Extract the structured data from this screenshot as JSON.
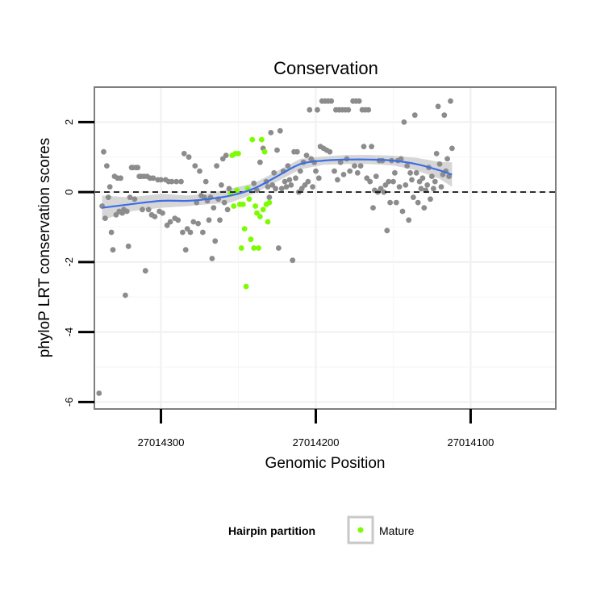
{
  "chart_data": {
    "type": "scatter",
    "title": "Conservation",
    "xlabel": "Genomic Position",
    "ylabel": "phyloP LRT conservation scores",
    "x_reversed": true,
    "xlim": [
      27014045,
      27014343
    ],
    "ylim": [
      -6.2,
      3.0
    ],
    "x_ticks": [
      27014300,
      27014200,
      27014100
    ],
    "x_tick_labels": [
      "27014300",
      "27014200",
      "27014100"
    ],
    "y_ticks": [
      -6,
      -4,
      -2,
      0,
      2
    ],
    "y_tick_labels": [
      "-6",
      "-4",
      "-2",
      "0",
      "2"
    ],
    "grid": true,
    "reference_line": {
      "y": 0,
      "style": "dashed",
      "color": "#000000"
    },
    "legend": {
      "title": "Hairpin partition",
      "position": "bottom",
      "entries": [
        {
          "label": "Mature",
          "color": "#7cfc00"
        }
      ]
    },
    "colors": {
      "other": "#8c8c8c",
      "mature": "#7cfc00",
      "smooth": "#3d6ee6",
      "ribbon": "#c8c8c8",
      "panel_border": "#7f7f7f",
      "grid": "#f0f0f0"
    },
    "series": [
      {
        "name": "",
        "color": "#8c8c8c",
        "points": [
          {
            "x": 27014340,
            "y": -5.75
          },
          {
            "x": 27014338,
            "y": -0.4
          },
          {
            "x": 27014337,
            "y": 1.15
          },
          {
            "x": 27014336,
            "y": -0.75
          },
          {
            "x": 27014335,
            "y": 0.75
          },
          {
            "x": 27014334,
            "y": -0.15
          },
          {
            "x": 27014333,
            "y": 0.15
          },
          {
            "x": 27014332,
            "y": -1.15
          },
          {
            "x": 27014331,
            "y": -1.65
          },
          {
            "x": 27014330,
            "y": 0.45
          },
          {
            "x": 27014329,
            "y": -0.65
          },
          {
            "x": 27014328,
            "y": 0.4
          },
          {
            "x": 27014327,
            "y": -0.55
          },
          {
            "x": 27014326,
            "y": 0.4
          },
          {
            "x": 27014325,
            "y": -0.6
          },
          {
            "x": 27014324,
            "y": -0.5
          },
          {
            "x": 27014323,
            "y": -2.95
          },
          {
            "x": 27014322,
            "y": -0.55
          },
          {
            "x": 27014321,
            "y": -1.55
          },
          {
            "x": 27014320,
            "y": -0.15
          },
          {
            "x": 27014319,
            "y": 0.7
          },
          {
            "x": 27014318,
            "y": 0.7
          },
          {
            "x": 27014317,
            "y": -0.2
          },
          {
            "x": 27014316,
            "y": 0.7
          },
          {
            "x": 27014315,
            "y": 0.7
          },
          {
            "x": 27014314,
            "y": 0.45
          },
          {
            "x": 27014313,
            "y": 0.45
          },
          {
            "x": 27014312,
            "y": -0.5
          },
          {
            "x": 27014311,
            "y": 0.45
          },
          {
            "x": 27014310,
            "y": -2.25
          },
          {
            "x": 27014309,
            "y": 0.45
          },
          {
            "x": 27014308,
            "y": -0.5
          },
          {
            "x": 27014307,
            "y": 0.4
          },
          {
            "x": 27014306,
            "y": -0.65
          },
          {
            "x": 27014305,
            "y": 0.4
          },
          {
            "x": 27014304,
            "y": -0.7
          },
          {
            "x": 27014302,
            "y": 0.35
          },
          {
            "x": 27014301,
            "y": -0.55
          },
          {
            "x": 27014300,
            "y": 0.35
          },
          {
            "x": 27014299,
            "y": -0.6
          },
          {
            "x": 27014297,
            "y": 0.35
          },
          {
            "x": 27014296,
            "y": -0.95
          },
          {
            "x": 27014295,
            "y": 0.3
          },
          {
            "x": 27014294,
            "y": -0.85
          },
          {
            "x": 27014293,
            "y": 0.3
          },
          {
            "x": 27014291,
            "y": -0.75
          },
          {
            "x": 27014290,
            "y": 0.3
          },
          {
            "x": 27014289,
            "y": -0.8
          },
          {
            "x": 27014287,
            "y": 0.3
          },
          {
            "x": 27014286,
            "y": -1.15
          },
          {
            "x": 27014285,
            "y": 1.1
          },
          {
            "x": 27014284,
            "y": -1.65
          },
          {
            "x": 27014283,
            "y": -1.05
          },
          {
            "x": 27014282,
            "y": 1.0
          },
          {
            "x": 27014281,
            "y": -1.15
          },
          {
            "x": 27014279,
            "y": -0.85
          },
          {
            "x": 27014278,
            "y": 0.75
          },
          {
            "x": 27014277,
            "y": -0.3
          },
          {
            "x": 27014276,
            "y": -0.9
          },
          {
            "x": 27014275,
            "y": 0.6
          },
          {
            "x": 27014274,
            "y": -0.1
          },
          {
            "x": 27014273,
            "y": -1.15
          },
          {
            "x": 27014272,
            "y": -0.15
          },
          {
            "x": 27014271,
            "y": 0.3
          },
          {
            "x": 27014270,
            "y": -0.25
          },
          {
            "x": 27014269,
            "y": -0.8
          },
          {
            "x": 27014268,
            "y": -0.15
          },
          {
            "x": 27014267,
            "y": -1.9
          },
          {
            "x": 27014266,
            "y": -0.45
          },
          {
            "x": 27014265,
            "y": -1.4
          },
          {
            "x": 27014264,
            "y": 0.75
          },
          {
            "x": 27014263,
            "y": -0.2
          },
          {
            "x": 27014262,
            "y": -0.8
          },
          {
            "x": 27014261,
            "y": 0.2
          },
          {
            "x": 27014260,
            "y": 0.95
          },
          {
            "x": 27014259,
            "y": -0.3
          },
          {
            "x": 27014258,
            "y": 1.05
          },
          {
            "x": 27014257,
            "y": -0.5
          },
          {
            "x": 27014256,
            "y": 0.1
          },
          {
            "x": 27014240,
            "y": 0.25
          },
          {
            "x": 27014238,
            "y": 0.05
          },
          {
            "x": 27014236,
            "y": 0.85
          },
          {
            "x": 27014234,
            "y": 1.25
          },
          {
            "x": 27014232,
            "y": 0.3
          },
          {
            "x": 27014231,
            "y": 0.15
          },
          {
            "x": 27014230,
            "y": -0.15
          },
          {
            "x": 27014229,
            "y": 1.7
          },
          {
            "x": 27014228,
            "y": 0.2
          },
          {
            "x": 27014227,
            "y": 0.55
          },
          {
            "x": 27014226,
            "y": 0.1
          },
          {
            "x": 27014225,
            "y": 1.2
          },
          {
            "x": 27014224,
            "y": -1.6
          },
          {
            "x": 27014223,
            "y": 1.75
          },
          {
            "x": 27014222,
            "y": 0.1
          },
          {
            "x": 27014221,
            "y": 0.6
          },
          {
            "x": 27014220,
            "y": 0.3
          },
          {
            "x": 27014219,
            "y": 0.15
          },
          {
            "x": 27014218,
            "y": 0.75
          },
          {
            "x": 27014217,
            "y": 0.35
          },
          {
            "x": 27014216,
            "y": 0.2
          },
          {
            "x": 27014215,
            "y": -1.95
          },
          {
            "x": 27014214,
            "y": 1.15
          },
          {
            "x": 27014213,
            "y": 0.4
          },
          {
            "x": 27014212,
            "y": 1.15
          },
          {
            "x": 27014211,
            "y": 0.0
          },
          {
            "x": 27014210,
            "y": 0.6
          },
          {
            "x": 27014209,
            "y": 0.1
          },
          {
            "x": 27014208,
            "y": 0.85
          },
          {
            "x": 27014207,
            "y": 0.2
          },
          {
            "x": 27014206,
            "y": 1.05
          },
          {
            "x": 27014205,
            "y": 0.3
          },
          {
            "x": 27014204,
            "y": 2.35
          },
          {
            "x": 27014203,
            "y": 0.95
          },
          {
            "x": 27014202,
            "y": 0.15
          },
          {
            "x": 27014201,
            "y": 0.85
          },
          {
            "x": 27014200,
            "y": 0.6
          },
          {
            "x": 27014199,
            "y": 2.35
          },
          {
            "x": 27014198,
            "y": 0.4
          },
          {
            "x": 27014197,
            "y": 1.3
          },
          {
            "x": 27014196,
            "y": 2.6
          },
          {
            "x": 27014195,
            "y": 1.25
          },
          {
            "x": 27014194,
            "y": 2.6
          },
          {
            "x": 27014193,
            "y": 1.2
          },
          {
            "x": 27014192,
            "y": 2.6
          },
          {
            "x": 27014191,
            "y": 1.15
          },
          {
            "x": 27014190,
            "y": 2.6
          },
          {
            "x": 27014188,
            "y": 0.6
          },
          {
            "x": 27014187,
            "y": 2.35
          },
          {
            "x": 27014186,
            "y": 0.35
          },
          {
            "x": 27014185,
            "y": 2.35
          },
          {
            "x": 27014184,
            "y": 0.85
          },
          {
            "x": 27014183,
            "y": 2.35
          },
          {
            "x": 27014182,
            "y": 0.5
          },
          {
            "x": 27014181,
            "y": 2.35
          },
          {
            "x": 27014180,
            "y": 0.95
          },
          {
            "x": 27014179,
            "y": 2.35
          },
          {
            "x": 27014178,
            "y": 0.6
          },
          {
            "x": 27014176,
            "y": 2.6
          },
          {
            "x": 27014175,
            "y": 0.75
          },
          {
            "x": 27014174,
            "y": 2.6
          },
          {
            "x": 27014173,
            "y": 0.55
          },
          {
            "x": 27014172,
            "y": 2.6
          },
          {
            "x": 27014171,
            "y": 0.75
          },
          {
            "x": 27014170,
            "y": 2.35
          },
          {
            "x": 27014169,
            "y": 1.3
          },
          {
            "x": 27014168,
            "y": 2.35
          },
          {
            "x": 27014167,
            "y": 0.4
          },
          {
            "x": 27014166,
            "y": 2.35
          },
          {
            "x": 27014165,
            "y": 0.3
          },
          {
            "x": 27014164,
            "y": 1.3
          },
          {
            "x": 27014163,
            "y": -0.45
          },
          {
            "x": 27014162,
            "y": 0.05
          },
          {
            "x": 27014161,
            "y": 0.45
          },
          {
            "x": 27014160,
            "y": 0.0
          },
          {
            "x": 27014159,
            "y": 0.9
          },
          {
            "x": 27014158,
            "y": 0.1
          },
          {
            "x": 27014157,
            "y": 0.9
          },
          {
            "x": 27014156,
            "y": 0.0
          },
          {
            "x": 27014155,
            "y": 0.2
          },
          {
            "x": 27014154,
            "y": -1.1
          },
          {
            "x": 27014153,
            "y": 0.3
          },
          {
            "x": 27014152,
            "y": -0.3
          },
          {
            "x": 27014151,
            "y": 0.9
          },
          {
            "x": 27014150,
            "y": 0.3
          },
          {
            "x": 27014149,
            "y": 0.55
          },
          {
            "x": 27014148,
            "y": -0.3
          },
          {
            "x": 27014147,
            "y": 0.9
          },
          {
            "x": 27014146,
            "y": 0.15
          },
          {
            "x": 27014145,
            "y": 0.95
          },
          {
            "x": 27014144,
            "y": -0.55
          },
          {
            "x": 27014143,
            "y": 2.0
          },
          {
            "x": 27014142,
            "y": 0.2
          },
          {
            "x": 27014141,
            "y": 0.75
          },
          {
            "x": 27014140,
            "y": -0.8
          },
          {
            "x": 27014139,
            "y": 0.55
          },
          {
            "x": 27014138,
            "y": 0.35
          },
          {
            "x": 27014137,
            "y": -0.15
          },
          {
            "x": 27014136,
            "y": 2.2
          },
          {
            "x": 27014135,
            "y": 0.55
          },
          {
            "x": 27014134,
            "y": -0.3
          },
          {
            "x": 27014133,
            "y": 0.3
          },
          {
            "x": 27014132,
            "y": 0.1
          },
          {
            "x": 27014131,
            "y": 0.4
          },
          {
            "x": 27014130,
            "y": -0.45
          },
          {
            "x": 27014129,
            "y": 0.05
          },
          {
            "x": 27014128,
            "y": 0.2
          },
          {
            "x": 27014127,
            "y": 0.7
          },
          {
            "x": 27014126,
            "y": -0.2
          },
          {
            "x": 27014125,
            "y": 0.45
          },
          {
            "x": 27014124,
            "y": 0.1
          },
          {
            "x": 27014123,
            "y": 0.3
          },
          {
            "x": 27014122,
            "y": 1.1
          },
          {
            "x": 27014121,
            "y": 2.45
          },
          {
            "x": 27014120,
            "y": 0.8
          },
          {
            "x": 27014119,
            "y": 0.15
          },
          {
            "x": 27014118,
            "y": 0.5
          },
          {
            "x": 27014117,
            "y": 2.2
          },
          {
            "x": 27014116,
            "y": 0.6
          },
          {
            "x": 27014115,
            "y": 0.95
          },
          {
            "x": 27014114,
            "y": 0.45
          },
          {
            "x": 27014113,
            "y": 2.6
          },
          {
            "x": 27014112,
            "y": 1.25
          }
        ]
      },
      {
        "name": "Mature",
        "color": "#7cfc00",
        "points": [
          {
            "x": 27014255,
            "y": -0.05
          },
          {
            "x": 27014254,
            "y": 1.05
          },
          {
            "x": 27014253,
            "y": -0.4
          },
          {
            "x": 27014252,
            "y": 1.1
          },
          {
            "x": 27014251,
            "y": 0.05
          },
          {
            "x": 27014250,
            "y": 1.1
          },
          {
            "x": 27014249,
            "y": -0.35
          },
          {
            "x": 27014248,
            "y": -1.6
          },
          {
            "x": 27014247,
            "y": -0.35
          },
          {
            "x": 27014246,
            "y": -1.05
          },
          {
            "x": 27014245,
            "y": -2.7
          },
          {
            "x": 27014244,
            "y": 0.1
          },
          {
            "x": 27014243,
            "y": -0.2
          },
          {
            "x": 27014242,
            "y": -1.35
          },
          {
            "x": 27014241,
            "y": 1.5
          },
          {
            "x": 27014240,
            "y": -1.6
          },
          {
            "x": 27014239,
            "y": -0.4
          },
          {
            "x": 27014238,
            "y": -0.6
          },
          {
            "x": 27014237,
            "y": -1.6
          },
          {
            "x": 27014236,
            "y": -0.7
          },
          {
            "x": 27014235,
            "y": 1.5
          },
          {
            "x": 27014234,
            "y": -0.5
          },
          {
            "x": 27014233,
            "y": 1.15
          },
          {
            "x": 27014232,
            "y": -0.35
          },
          {
            "x": 27014231,
            "y": -0.85
          },
          {
            "x": 27014230,
            "y": -0.3
          }
        ]
      }
    ],
    "smooth": {
      "x": [
        27014338,
        27014320,
        27014300,
        27014283,
        27014270,
        27014255,
        27014240,
        27014225,
        27014210,
        27014195,
        27014180,
        27014165,
        27014150,
        27014135,
        27014120,
        27014112
      ],
      "y": [
        -0.45,
        -0.35,
        -0.25,
        -0.25,
        -0.2,
        -0.1,
        0.1,
        0.45,
        0.8,
        0.9,
        0.93,
        0.93,
        0.9,
        0.8,
        0.62,
        0.5
      ],
      "ci_low": [
        -0.8,
        -0.55,
        -0.45,
        -0.4,
        -0.35,
        -0.3,
        -0.05,
        0.3,
        0.65,
        0.78,
        0.8,
        0.8,
        0.76,
        0.62,
        0.38,
        0.15
      ],
      "ci_high": [
        -0.1,
        -0.15,
        -0.05,
        -0.1,
        -0.05,
        0.1,
        0.25,
        0.6,
        0.95,
        1.02,
        1.06,
        1.06,
        1.04,
        0.98,
        0.86,
        0.85
      ]
    }
  }
}
